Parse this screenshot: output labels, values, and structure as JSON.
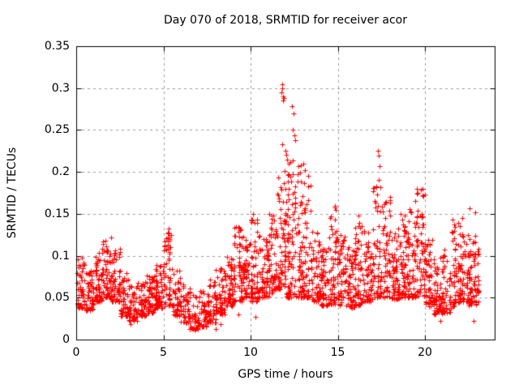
{
  "page": {
    "background": "#ffffff",
    "kind": "gnuplot scatter chart screenshot"
  },
  "chart_data": {
    "type": "scatter",
    "title": "Day 070 of 2018, SRMTID for receiver acor",
    "xlabel": "GPS time / hours",
    "ylabel": "SRMTID / TECUs",
    "xlim": [
      0,
      24
    ],
    "ylim": [
      0,
      0.35
    ],
    "xticks": [
      0,
      5,
      10,
      15,
      20
    ],
    "xtick_labels": [
      "0",
      "5",
      "10",
      "15",
      "20"
    ],
    "yticks": [
      0,
      0.05,
      0.1,
      0.15,
      0.2,
      0.25,
      0.3,
      0.35
    ],
    "ytick_labels": [
      "0",
      "0.05",
      "0.1",
      "0.15",
      "0.2",
      "0.25",
      "0.3",
      "0.35"
    ],
    "grid": true,
    "legend": "none",
    "marker": "plus",
    "marker_color": "#ff0000",
    "grid_color": "#9b9b9b",
    "axis_color": "#000000",
    "data_x_extent": [
      0,
      23.1
    ],
    "seed": 20180070,
    "cloud_bands_format": [
      "x_start_hour",
      "x_end_hour",
      "y_min_TECUs",
      "y_max_TECUs",
      "n_points"
    ],
    "cloud_bands": [
      [
        0.0,
        0.5,
        0.038,
        0.098,
        55
      ],
      [
        0.5,
        1.0,
        0.035,
        0.088,
        55
      ],
      [
        1.0,
        1.5,
        0.045,
        0.105,
        55
      ],
      [
        1.5,
        2.0,
        0.05,
        0.118,
        60
      ],
      [
        2.0,
        2.5,
        0.045,
        0.112,
        60
      ],
      [
        2.5,
        3.0,
        0.028,
        0.08,
        50
      ],
      [
        3.0,
        3.5,
        0.022,
        0.065,
        50
      ],
      [
        3.5,
        4.0,
        0.028,
        0.07,
        50
      ],
      [
        4.0,
        4.5,
        0.032,
        0.078,
        52
      ],
      [
        4.5,
        5.0,
        0.038,
        0.09,
        55
      ],
      [
        5.0,
        5.5,
        0.04,
        0.135,
        58
      ],
      [
        5.5,
        6.0,
        0.028,
        0.082,
        50
      ],
      [
        6.0,
        6.5,
        0.02,
        0.068,
        46
      ],
      [
        6.5,
        7.0,
        0.012,
        0.058,
        42
      ],
      [
        7.0,
        7.5,
        0.015,
        0.06,
        44
      ],
      [
        7.5,
        8.0,
        0.02,
        0.072,
        48
      ],
      [
        8.0,
        8.5,
        0.03,
        0.085,
        52
      ],
      [
        8.5,
        9.0,
        0.04,
        0.1,
        55
      ],
      [
        9.0,
        9.5,
        0.045,
        0.135,
        58
      ],
      [
        9.5,
        10.0,
        0.05,
        0.125,
        58
      ],
      [
        10.0,
        10.5,
        0.045,
        0.15,
        58
      ],
      [
        10.5,
        11.0,
        0.05,
        0.125,
        58
      ],
      [
        11.0,
        11.5,
        0.055,
        0.15,
        60
      ],
      [
        11.5,
        12.0,
        0.06,
        0.205,
        68
      ],
      [
        12.0,
        12.5,
        0.05,
        0.215,
        72
      ],
      [
        12.5,
        13.0,
        0.05,
        0.21,
        66
      ],
      [
        13.0,
        13.5,
        0.05,
        0.205,
        60
      ],
      [
        13.5,
        14.0,
        0.045,
        0.13,
        55
      ],
      [
        14.0,
        14.5,
        0.04,
        0.12,
        55
      ],
      [
        14.5,
        15.0,
        0.042,
        0.16,
        58
      ],
      [
        15.0,
        15.5,
        0.04,
        0.13,
        55
      ],
      [
        15.5,
        16.0,
        0.038,
        0.115,
        55
      ],
      [
        16.0,
        16.5,
        0.04,
        0.14,
        55
      ],
      [
        16.5,
        17.0,
        0.045,
        0.13,
        55
      ],
      [
        17.0,
        17.5,
        0.05,
        0.185,
        60
      ],
      [
        17.5,
        18.0,
        0.05,
        0.17,
        58
      ],
      [
        18.0,
        18.5,
        0.048,
        0.135,
        55
      ],
      [
        18.5,
        19.0,
        0.05,
        0.148,
        56
      ],
      [
        19.0,
        19.5,
        0.05,
        0.158,
        60
      ],
      [
        19.5,
        20.0,
        0.052,
        0.18,
        60
      ],
      [
        20.0,
        20.5,
        0.04,
        0.12,
        55
      ],
      [
        20.5,
        21.0,
        0.03,
        0.1,
        52
      ],
      [
        21.0,
        21.5,
        0.032,
        0.11,
        52
      ],
      [
        21.5,
        22.0,
        0.04,
        0.14,
        55
      ],
      [
        22.0,
        22.5,
        0.045,
        0.14,
        56
      ],
      [
        22.5,
        23.0,
        0.04,
        0.125,
        58
      ],
      [
        23.0,
        23.1,
        0.045,
        0.12,
        14
      ]
    ],
    "outlier_points": [
      [
        11.78,
        0.295
      ],
      [
        11.8,
        0.305
      ],
      [
        11.82,
        0.3
      ],
      [
        11.85,
        0.29
      ],
      [
        11.87,
        0.285
      ],
      [
        11.9,
        0.288
      ],
      [
        11.8,
        0.233
      ],
      [
        12.35,
        0.278
      ],
      [
        12.45,
        0.27
      ],
      [
        12.4,
        0.25
      ],
      [
        12.5,
        0.244
      ],
      [
        12.55,
        0.238
      ],
      [
        12.0,
        0.225
      ],
      [
        12.05,
        0.22
      ],
      [
        12.1,
        0.215
      ],
      [
        13.0,
        0.21
      ],
      [
        5.28,
        0.132
      ],
      [
        5.32,
        0.127
      ],
      [
        9.15,
        0.134
      ],
      [
        10.15,
        0.15
      ],
      [
        2.0,
        0.122
      ],
      [
        14.85,
        0.16
      ],
      [
        14.9,
        0.155
      ],
      [
        16.2,
        0.148
      ],
      [
        17.3,
        0.225
      ],
      [
        17.33,
        0.219
      ],
      [
        17.4,
        0.207
      ],
      [
        17.37,
        0.19
      ],
      [
        18.6,
        0.15
      ],
      [
        19.45,
        0.165
      ],
      [
        19.55,
        0.18
      ],
      [
        19.6,
        0.175
      ],
      [
        21.6,
        0.143
      ],
      [
        22.15,
        0.145
      ],
      [
        22.55,
        0.157
      ],
      [
        22.9,
        0.152
      ],
      [
        6.8,
        0.012
      ],
      [
        8.0,
        0.013
      ],
      [
        8.3,
        0.018
      ],
      [
        3.1,
        0.018
      ],
      [
        9.3,
        0.03
      ],
      [
        10.3,
        0.027
      ],
      [
        20.9,
        0.022
      ],
      [
        22.8,
        0.022
      ]
    ]
  }
}
